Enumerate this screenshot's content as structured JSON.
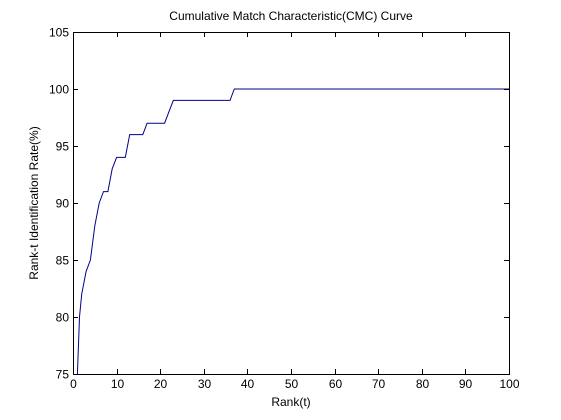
{
  "chart_data": {
    "type": "line",
    "title": "Cumulative Match Characteristic(CMC) Curve",
    "xlabel": "Rank(t)",
    "ylabel": "Rank-t Identification Rate(%)",
    "xlim": [
      0,
      100
    ],
    "ylim": [
      75,
      105
    ],
    "xticks": [
      0,
      10,
      20,
      30,
      40,
      50,
      60,
      70,
      80,
      90,
      100
    ],
    "yticks": [
      75,
      80,
      85,
      90,
      95,
      100,
      105
    ],
    "grid": false,
    "legend": "none",
    "series": [
      {
        "color": "#00008b",
        "x": [
          1,
          1.5,
          2,
          3,
          4,
          5,
          6,
          7,
          8,
          9,
          10,
          11,
          12,
          13,
          14,
          15,
          16,
          17,
          18,
          19,
          20,
          21,
          22,
          23,
          24,
          25,
          30,
          35,
          36,
          37,
          40,
          50,
          60,
          70,
          80,
          90,
          100
        ],
        "y": [
          75,
          80,
          82,
          84,
          85,
          88,
          90,
          91,
          91,
          93,
          94,
          94,
          94,
          96,
          96,
          96,
          96,
          97,
          97,
          97,
          97,
          97,
          98,
          99,
          99,
          99,
          99,
          99,
          99,
          100,
          100,
          100,
          100,
          100,
          100,
          100,
          100
        ]
      }
    ]
  }
}
